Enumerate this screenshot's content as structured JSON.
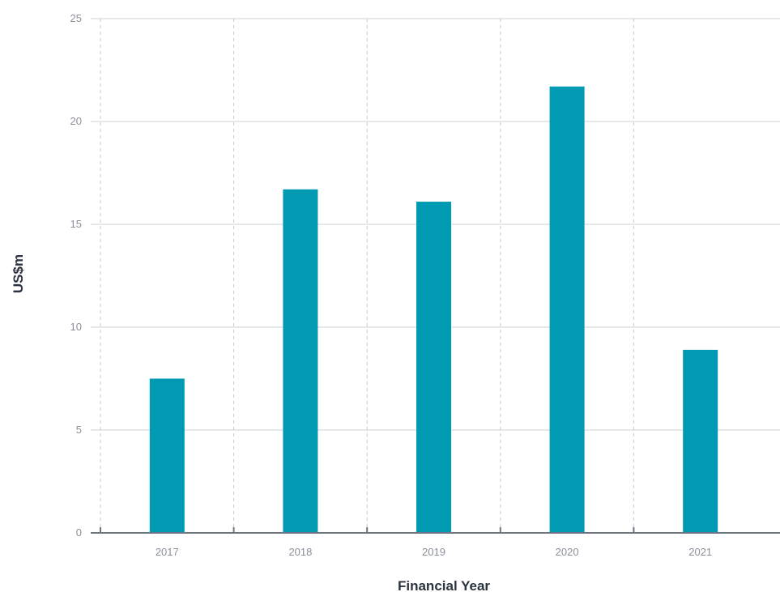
{
  "chart_data": {
    "type": "bar",
    "title": "",
    "xlabel": "Financial Year",
    "ylabel": "US$m",
    "categories": [
      "2017",
      "2018",
      "2019",
      "2020",
      "2021"
    ],
    "values": [
      7.5,
      16.7,
      16.1,
      21.7,
      8.9
    ],
    "ylim": [
      0,
      25
    ],
    "yticks": [
      "0",
      "5",
      "10",
      "15",
      "20",
      "25"
    ],
    "grid": "horizontal solid, vertical dashed",
    "legend": "none",
    "bar_color": "#009ab3"
  }
}
